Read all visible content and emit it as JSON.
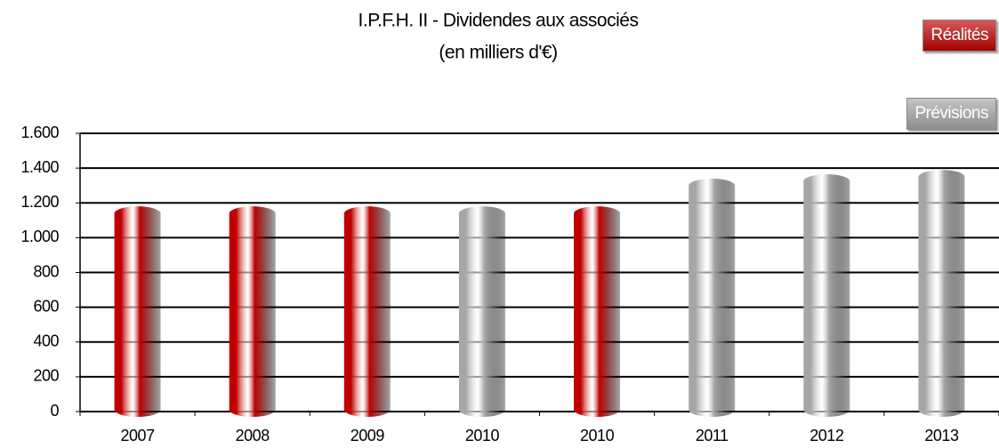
{
  "chart_data": {
    "type": "bar",
    "title": "I.P.F.H. II - Dividendes aux associés",
    "subtitle": "(en milliers d'€)",
    "categories": [
      "2007",
      "2008",
      "2009",
      "2010",
      "2010",
      "2011",
      "2012",
      "2013"
    ],
    "series": [
      {
        "name": "Réalités",
        "color": "#c00000",
        "values": [
          1180,
          1180,
          1180,
          null,
          1180,
          null,
          null,
          null
        ]
      },
      {
        "name": "Prévisions",
        "color": "#a6a6a6",
        "values": [
          null,
          null,
          null,
          1180,
          null,
          1340,
          1365,
          1390
        ]
      }
    ],
    "ylim": [
      0,
      1600
    ],
    "yticks": [
      0,
      200,
      400,
      600,
      800,
      {
        "value": 1000,
        "label": "1.000"
      },
      {
        "value": 1200,
        "label": "1.200"
      },
      {
        "value": 1400,
        "label": "1.400"
      },
      {
        "value": 1600,
        "label": "1.600"
      }
    ],
    "grid": true,
    "legend": "top-right"
  }
}
